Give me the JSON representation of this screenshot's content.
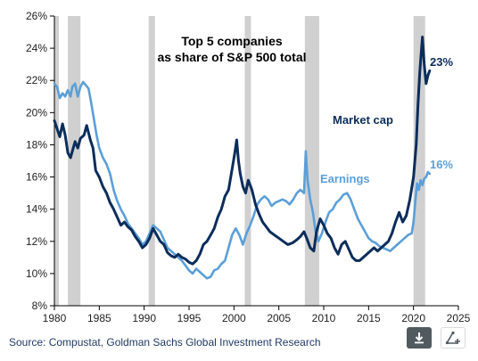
{
  "chart_data": {
    "type": "line",
    "title_lines": [
      "Top 5 companies",
      "as share of S&P 500 total"
    ],
    "xlabel": "",
    "ylabel": "",
    "xlim": [
      1980,
      2025
    ],
    "ylim": [
      8,
      26
    ],
    "x_ticks": [
      "1980",
      "1985",
      "1990",
      "1995",
      "2000",
      "2005",
      "2010",
      "2015",
      "2020",
      "2025"
    ],
    "y_ticks": [
      "8%",
      "10%",
      "12%",
      "14%",
      "16%",
      "18%",
      "20%",
      "22%",
      "24%",
      "26%"
    ],
    "grid": false,
    "recession_bands": [
      [
        1980.0,
        1980.5
      ],
      [
        1981.5,
        1982.9
      ],
      [
        1990.5,
        1991.2
      ],
      [
        2001.2,
        2001.9
      ],
      [
        2007.9,
        2009.5
      ],
      [
        2020.0,
        2021.3
      ]
    ],
    "series": [
      {
        "name": "Market cap",
        "end_label": "23%",
        "color": "#0b2d5b",
        "points": [
          [
            1980.0,
            19.5
          ],
          [
            1980.3,
            19.0
          ],
          [
            1980.6,
            18.5
          ],
          [
            1980.9,
            19.3
          ],
          [
            1981.2,
            18.6
          ],
          [
            1981.5,
            17.5
          ],
          [
            1981.8,
            17.2
          ],
          [
            1982.0,
            17.6
          ],
          [
            1982.3,
            18.2
          ],
          [
            1982.6,
            17.8
          ],
          [
            1982.9,
            18.4
          ],
          [
            1983.3,
            18.6
          ],
          [
            1983.6,
            19.2
          ],
          [
            1984.0,
            18.3
          ],
          [
            1984.3,
            17.8
          ],
          [
            1984.6,
            16.4
          ],
          [
            1985.0,
            16.0
          ],
          [
            1985.4,
            15.4
          ],
          [
            1985.8,
            15.0
          ],
          [
            1986.2,
            14.4
          ],
          [
            1986.6,
            14.0
          ],
          [
            1987.0,
            13.5
          ],
          [
            1987.4,
            13.0
          ],
          [
            1987.8,
            13.2
          ],
          [
            1988.2,
            12.9
          ],
          [
            1988.6,
            12.7
          ],
          [
            1989.0,
            12.3
          ],
          [
            1989.4,
            12.0
          ],
          [
            1989.8,
            11.6
          ],
          [
            1990.2,
            11.8
          ],
          [
            1990.6,
            12.2
          ],
          [
            1991.0,
            12.8
          ],
          [
            1991.4,
            12.4
          ],
          [
            1991.8,
            12.0
          ],
          [
            1992.2,
            11.8
          ],
          [
            1992.6,
            11.3
          ],
          [
            1993.0,
            11.1
          ],
          [
            1993.4,
            11.0
          ],
          [
            1993.8,
            11.2
          ],
          [
            1994.2,
            11.0
          ],
          [
            1994.6,
            10.9
          ],
          [
            1995.0,
            10.7
          ],
          [
            1995.4,
            10.6
          ],
          [
            1995.8,
            10.8
          ],
          [
            1996.2,
            11.2
          ],
          [
            1996.6,
            11.8
          ],
          [
            1997.0,
            12.0
          ],
          [
            1997.4,
            12.4
          ],
          [
            1997.8,
            12.8
          ],
          [
            1998.2,
            13.5
          ],
          [
            1998.6,
            14.0
          ],
          [
            1999.0,
            14.8
          ],
          [
            1999.4,
            15.2
          ],
          [
            1999.8,
            16.5
          ],
          [
            2000.1,
            17.5
          ],
          [
            2000.3,
            18.3
          ],
          [
            2000.5,
            17.0
          ],
          [
            2000.7,
            16.2
          ],
          [
            2001.0,
            15.4
          ],
          [
            2001.3,
            15.0
          ],
          [
            2001.6,
            15.8
          ],
          [
            2002.0,
            15.2
          ],
          [
            2002.4,
            14.3
          ],
          [
            2002.8,
            13.7
          ],
          [
            2003.2,
            13.2
          ],
          [
            2003.6,
            12.9
          ],
          [
            2004.0,
            12.6
          ],
          [
            2004.5,
            12.4
          ],
          [
            2005.0,
            12.2
          ],
          [
            2005.5,
            12.0
          ],
          [
            2006.0,
            11.8
          ],
          [
            2006.5,
            11.9
          ],
          [
            2007.0,
            12.1
          ],
          [
            2007.4,
            12.3
          ],
          [
            2007.8,
            12.6
          ],
          [
            2008.1,
            12.2
          ],
          [
            2008.5,
            11.6
          ],
          [
            2008.9,
            11.4
          ],
          [
            2009.2,
            12.6
          ],
          [
            2009.6,
            13.4
          ],
          [
            2010.0,
            13.0
          ],
          [
            2010.4,
            12.5
          ],
          [
            2010.8,
            12.2
          ],
          [
            2011.2,
            11.6
          ],
          [
            2011.6,
            11.2
          ],
          [
            2012.0,
            11.8
          ],
          [
            2012.4,
            12.0
          ],
          [
            2012.8,
            11.5
          ],
          [
            2013.2,
            11.0
          ],
          [
            2013.6,
            10.8
          ],
          [
            2014.0,
            10.8
          ],
          [
            2014.4,
            11.0
          ],
          [
            2014.8,
            11.2
          ],
          [
            2015.2,
            11.4
          ],
          [
            2015.6,
            11.6
          ],
          [
            2016.0,
            11.4
          ],
          [
            2016.4,
            11.6
          ],
          [
            2016.8,
            11.8
          ],
          [
            2017.2,
            12.0
          ],
          [
            2017.6,
            12.5
          ],
          [
            2018.0,
            13.2
          ],
          [
            2018.4,
            13.8
          ],
          [
            2018.8,
            13.2
          ],
          [
            2019.2,
            13.6
          ],
          [
            2019.6,
            14.6
          ],
          [
            2020.0,
            16.0
          ],
          [
            2020.3,
            18.0
          ],
          [
            2020.5,
            20.5
          ],
          [
            2020.7,
            22.5
          ],
          [
            2020.9,
            24.0
          ],
          [
            2021.0,
            24.7
          ],
          [
            2021.2,
            23.0
          ],
          [
            2021.4,
            21.8
          ],
          [
            2021.6,
            22.3
          ],
          [
            2021.8,
            22.6
          ]
        ]
      },
      {
        "name": "Earnings",
        "end_label": "16%",
        "color": "#5b9fd8",
        "points": [
          [
            1980.0,
            21.8
          ],
          [
            1980.3,
            21.6
          ],
          [
            1980.6,
            20.9
          ],
          [
            1980.9,
            21.2
          ],
          [
            1981.2,
            21.0
          ],
          [
            1981.5,
            21.4
          ],
          [
            1981.8,
            21.0
          ],
          [
            1982.0,
            21.6
          ],
          [
            1982.3,
            21.8
          ],
          [
            1982.6,
            21.0
          ],
          [
            1982.9,
            21.6
          ],
          [
            1983.2,
            21.9
          ],
          [
            1983.5,
            21.7
          ],
          [
            1983.8,
            21.5
          ],
          [
            1984.1,
            20.6
          ],
          [
            1984.4,
            19.6
          ],
          [
            1984.7,
            18.6
          ],
          [
            1985.0,
            17.8
          ],
          [
            1985.4,
            17.2
          ],
          [
            1985.8,
            16.8
          ],
          [
            1986.2,
            16.2
          ],
          [
            1986.6,
            15.2
          ],
          [
            1987.0,
            14.5
          ],
          [
            1987.4,
            14.0
          ],
          [
            1987.8,
            13.6
          ],
          [
            1988.2,
            13.1
          ],
          [
            1988.6,
            12.8
          ],
          [
            1989.0,
            12.5
          ],
          [
            1989.4,
            12.2
          ],
          [
            1989.8,
            11.8
          ],
          [
            1990.2,
            12.0
          ],
          [
            1990.6,
            12.5
          ],
          [
            1991.0,
            13.0
          ],
          [
            1991.4,
            12.8
          ],
          [
            1991.8,
            12.6
          ],
          [
            1992.2,
            12.1
          ],
          [
            1992.6,
            11.6
          ],
          [
            1993.0,
            11.4
          ],
          [
            1993.4,
            11.2
          ],
          [
            1993.8,
            11.0
          ],
          [
            1994.2,
            10.8
          ],
          [
            1994.6,
            10.5
          ],
          [
            1995.0,
            10.2
          ],
          [
            1995.4,
            10.0
          ],
          [
            1995.8,
            10.3
          ],
          [
            1996.2,
            10.1
          ],
          [
            1996.6,
            9.9
          ],
          [
            1997.0,
            9.7
          ],
          [
            1997.4,
            9.8
          ],
          [
            1997.8,
            10.2
          ],
          [
            1998.2,
            10.3
          ],
          [
            1998.6,
            10.6
          ],
          [
            1999.0,
            10.8
          ],
          [
            1999.4,
            11.6
          ],
          [
            1999.8,
            12.4
          ],
          [
            2000.2,
            12.8
          ],
          [
            2000.6,
            12.4
          ],
          [
            2001.0,
            11.8
          ],
          [
            2001.4,
            12.5
          ],
          [
            2001.8,
            13.0
          ],
          [
            2002.2,
            13.6
          ],
          [
            2002.6,
            14.3
          ],
          [
            2003.0,
            14.6
          ],
          [
            2003.4,
            14.8
          ],
          [
            2003.8,
            14.6
          ],
          [
            2004.2,
            14.2
          ],
          [
            2004.6,
            14.4
          ],
          [
            2005.0,
            14.5
          ],
          [
            2005.4,
            14.6
          ],
          [
            2005.8,
            14.5
          ],
          [
            2006.2,
            14.3
          ],
          [
            2006.6,
            14.6
          ],
          [
            2007.0,
            15.0
          ],
          [
            2007.4,
            15.2
          ],
          [
            2007.8,
            15.0
          ],
          [
            2008.0,
            17.6
          ],
          [
            2008.2,
            15.8
          ],
          [
            2008.5,
            14.6
          ],
          [
            2008.8,
            13.8
          ],
          [
            2009.1,
            12.6
          ],
          [
            2009.4,
            12.0
          ],
          [
            2009.8,
            12.5
          ],
          [
            2010.2,
            13.2
          ],
          [
            2010.6,
            13.8
          ],
          [
            2011.0,
            14.0
          ],
          [
            2011.4,
            14.4
          ],
          [
            2011.8,
            14.6
          ],
          [
            2012.2,
            14.9
          ],
          [
            2012.6,
            15.0
          ],
          [
            2013.0,
            14.6
          ],
          [
            2013.4,
            14.0
          ],
          [
            2013.8,
            13.4
          ],
          [
            2014.2,
            13.0
          ],
          [
            2014.6,
            12.6
          ],
          [
            2015.0,
            12.2
          ],
          [
            2015.4,
            12.0
          ],
          [
            2015.8,
            11.9
          ],
          [
            2016.2,
            11.7
          ],
          [
            2016.6,
            11.6
          ],
          [
            2017.0,
            11.5
          ],
          [
            2017.4,
            11.4
          ],
          [
            2017.8,
            11.6
          ],
          [
            2018.2,
            11.8
          ],
          [
            2018.6,
            12.0
          ],
          [
            2019.0,
            12.2
          ],
          [
            2019.4,
            12.4
          ],
          [
            2019.8,
            12.5
          ],
          [
            2020.0,
            13.2
          ],
          [
            2020.2,
            14.5
          ],
          [
            2020.4,
            15.6
          ],
          [
            2020.6,
            15.2
          ],
          [
            2020.8,
            15.8
          ],
          [
            2021.0,
            15.5
          ],
          [
            2021.2,
            15.9
          ],
          [
            2021.4,
            16.0
          ],
          [
            2021.6,
            16.3
          ],
          [
            2021.8,
            16.2
          ]
        ]
      }
    ]
  },
  "source": "Source: Compustat, Goldman Sachs Global Investment Research",
  "toolbar": {
    "download_icon": "download-icon",
    "share_icon": "share-icon"
  }
}
